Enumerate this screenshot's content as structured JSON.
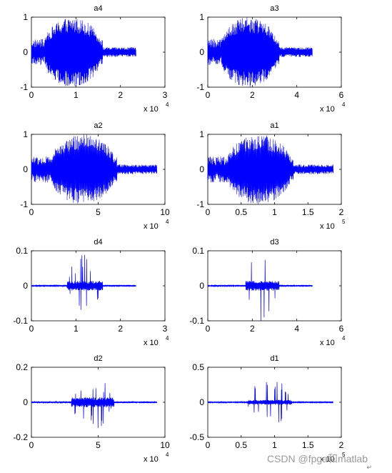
{
  "chart_data": [
    {
      "type": "line",
      "title": "a4",
      "color": "#0000ff",
      "xlim": [
        0,
        30000
      ],
      "ylim": [
        -1,
        1
      ],
      "xticks": [
        0,
        1,
        2,
        3
      ],
      "yticks": [
        -1,
        0,
        1
      ],
      "xexponent": "x 10",
      "xexponent_power": "4",
      "signal": {
        "length": 23500,
        "active_start": 3000,
        "active_end": 16000,
        "peak": 1.0,
        "tail_level": 0.1
      }
    },
    {
      "type": "line",
      "title": "a3",
      "color": "#0000ff",
      "xlim": [
        0,
        60000
      ],
      "ylim": [
        -1,
        1
      ],
      "xticks": [
        0,
        2,
        4,
        6
      ],
      "yticks": [
        -1,
        0,
        1
      ],
      "xexponent": "x 10",
      "xexponent_power": "4",
      "signal": {
        "length": 47000,
        "active_start": 6000,
        "active_end": 32000,
        "peak": 1.0,
        "tail_level": 0.1
      }
    },
    {
      "type": "line",
      "title": "a2",
      "color": "#0000ff",
      "xlim": [
        0,
        100000
      ],
      "ylim": [
        -1,
        1
      ],
      "xticks": [
        0,
        5,
        10
      ],
      "yticks": [
        -1,
        0,
        1
      ],
      "xexponent": "x 10",
      "xexponent_power": "4",
      "signal": {
        "length": 94000,
        "active_start": 15000,
        "active_end": 64000,
        "peak": 1.0,
        "tail_level": 0.1
      }
    },
    {
      "type": "line",
      "title": "a1",
      "color": "#0000ff",
      "xlim": [
        0,
        200000
      ],
      "ylim": [
        -1,
        1
      ],
      "xticks": [
        0,
        0.5,
        1,
        1.5,
        2
      ],
      "yticks": [
        -1,
        0,
        1
      ],
      "xexponent": "x 10",
      "xexponent_power": "5",
      "signal": {
        "length": 188000,
        "active_start": 30000,
        "active_end": 128000,
        "peak": 1.0,
        "tail_level": 0.1
      }
    },
    {
      "type": "line",
      "title": "d4",
      "color": "#0000ff",
      "xlim": [
        0,
        30000
      ],
      "ylim": [
        -0.1,
        0.1
      ],
      "xticks": [
        0,
        1,
        2,
        3
      ],
      "yticks": [
        -0.1,
        0,
        0.1
      ],
      "xexponent": "x 10",
      "xexponent_power": "4",
      "signal": {
        "length": 23500,
        "active_start": 8000,
        "active_end": 16000,
        "peak": 0.085,
        "tail_level": 0.002
      }
    },
    {
      "type": "line",
      "title": "d3",
      "color": "#0000ff",
      "xlim": [
        0,
        60000
      ],
      "ylim": [
        -0.1,
        0.1
      ],
      "xticks": [
        0,
        2,
        4,
        6
      ],
      "yticks": [
        -0.1,
        0,
        0.1
      ],
      "xexponent": "x 10",
      "xexponent_power": "4",
      "signal": {
        "length": 47000,
        "active_start": 17000,
        "active_end": 32000,
        "peak": 0.1,
        "tail_level": 0.002
      }
    },
    {
      "type": "line",
      "title": "d2",
      "color": "#0000ff",
      "xlim": [
        0,
        100000
      ],
      "ylim": [
        -0.2,
        0.2
      ],
      "xticks": [
        0,
        5,
        10
      ],
      "yticks": [
        -0.2,
        0,
        0.2
      ],
      "xexponent": "x 10",
      "xexponent_power": "4",
      "signal": {
        "length": 94000,
        "active_start": 30000,
        "active_end": 62000,
        "peak": 0.15,
        "tail_level": 0.004
      }
    },
    {
      "type": "line",
      "title": "d1",
      "color": "#0000ff",
      "xlim": [
        0,
        200000
      ],
      "ylim": [
        -0.5,
        0.5
      ],
      "xticks": [
        0,
        0.5,
        1,
        1.5,
        2
      ],
      "yticks": [
        -0.5,
        0,
        0.5
      ],
      "xexponent": "x 10",
      "xexponent_power": "5",
      "signal": {
        "length": 188000,
        "active_start": 60000,
        "active_end": 126000,
        "peak": 0.37,
        "tail_level": 0.005
      }
    }
  ],
  "watermark": "CSDN @fpga和matlab",
  "return_mark": "↵"
}
